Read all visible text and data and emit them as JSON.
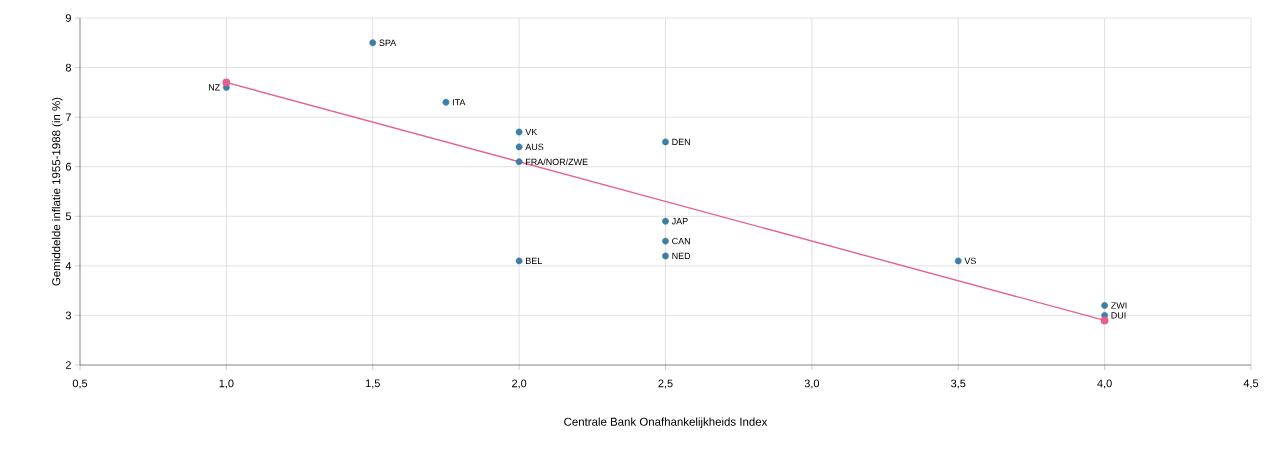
{
  "chart_data": {
    "type": "scatter",
    "xlabel": "Centrale Bank Onafhankelijkheids Index",
    "ylabel": "Gemiddelde inflatie 1955-1988 (in %)",
    "xlim": [
      0.5,
      4.5
    ],
    "ylim": [
      2,
      9
    ],
    "xticks": [
      {
        "value": 0.5,
        "label": "0,5"
      },
      {
        "value": 1.0,
        "label": "1,0"
      },
      {
        "value": 1.5,
        "label": "1,5"
      },
      {
        "value": 2.0,
        "label": "2,0"
      },
      {
        "value": 2.5,
        "label": "2,5"
      },
      {
        "value": 3.0,
        "label": "3,0"
      },
      {
        "value": 3.5,
        "label": "3,5"
      },
      {
        "value": 4.0,
        "label": "4,0"
      },
      {
        "value": 4.5,
        "label": "4,5"
      }
    ],
    "yticks": [
      2,
      3,
      4,
      5,
      6,
      7,
      8,
      9
    ],
    "grid": true,
    "marker": "circle",
    "series": [
      {
        "color": "#3d7fa3",
        "x": [
          1.0,
          1.5,
          1.75,
          2.0,
          2.0,
          2.0,
          2.0,
          2.5,
          2.5,
          2.5,
          2.5,
          3.5,
          4.0,
          4.0
        ],
        "values": [
          7.6,
          8.5,
          7.3,
          6.7,
          6.4,
          6.1,
          4.1,
          6.5,
          4.9,
          4.5,
          4.2,
          4.1,
          3.2,
          3.0
        ]
      },
      {
        "type": "line",
        "color": "#e6608f",
        "x": [
          1.0,
          4.0
        ],
        "values": [
          7.7,
          2.9
        ]
      }
    ],
    "annotations": [
      {
        "text": "NZ",
        "x": 1.0,
        "y": 7.6
      },
      {
        "text": "SPA",
        "x": 1.5,
        "y": 8.5
      },
      {
        "text": "ITA",
        "x": 1.75,
        "y": 7.3
      },
      {
        "text": "VK",
        "x": 2.0,
        "y": 6.7
      },
      {
        "text": "AUS",
        "x": 2.0,
        "y": 6.4
      },
      {
        "text": "FRA/NOR/ZWE",
        "x": 2.0,
        "y": 6.1
      },
      {
        "text": "BEL",
        "x": 2.0,
        "y": 4.1
      },
      {
        "text": "DEN",
        "x": 2.5,
        "y": 6.5
      },
      {
        "text": "JAP",
        "x": 2.5,
        "y": 4.9
      },
      {
        "text": "CAN",
        "x": 2.5,
        "y": 4.5
      },
      {
        "text": "NED",
        "x": 2.5,
        "y": 4.2
      },
      {
        "text": "VS",
        "x": 3.5,
        "y": 4.1
      },
      {
        "text": "ZWI",
        "x": 4.0,
        "y": 3.2
      },
      {
        "text": "DUI",
        "x": 4.0,
        "y": 3.0
      }
    ]
  }
}
